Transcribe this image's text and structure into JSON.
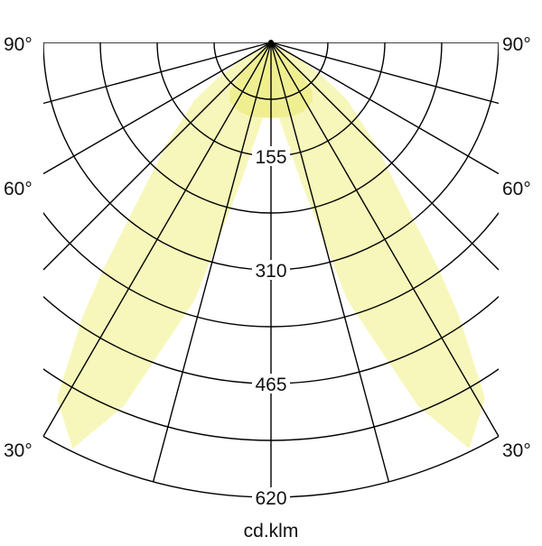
{
  "chart_data": {
    "type": "polar",
    "unit_label": "cd.klm",
    "radial_ticks": [
      155,
      310,
      465,
      620
    ],
    "radial_max": 620,
    "radial_minor_step": 77.5,
    "angle_grid_step_deg": 15,
    "angle_labels": [
      {
        "angle": 90,
        "text": "90°"
      },
      {
        "angle": 60,
        "text": "60°"
      },
      {
        "angle": 30,
        "text": "30°"
      }
    ],
    "symmetric": true,
    "series": [
      {
        "gamma_deg": [
          0,
          6,
          12,
          16.5,
          22,
          26,
          31,
          34.5,
          36.5,
          39,
          45.7,
          53,
          57,
          62,
          66
        ],
        "intensity": [
          103,
          103,
          192,
          367,
          534,
          616,
          566,
          452,
          383,
          305,
          199,
          130,
          81,
          30,
          0
        ],
        "color": "#f7f7bb"
      },
      {
        "gamma_deg": [
          0,
          15,
          25,
          35,
          40,
          45,
          50
        ],
        "intensity": [
          103,
          105,
          104,
          98,
          88,
          55,
          0
        ],
        "color": "#efef92"
      }
    ],
    "grid_color": "#000000"
  }
}
